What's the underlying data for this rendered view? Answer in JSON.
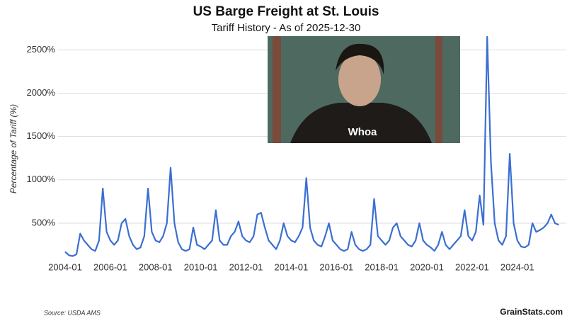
{
  "chart_data": {
    "type": "line",
    "title": "US Barge Freight at St. Louis",
    "subtitle": "Tariff History - As of 2025-12-30",
    "y_label": "Percentage of Tariff (%)",
    "source": "Source: USDA AMS",
    "brand": "GrainStats.com",
    "image_caption": "Whoa",
    "grid": true,
    "xlim": [
      "2004-01",
      "2025-12"
    ],
    "xticks": [
      "2004-01",
      "2006-01",
      "2008-01",
      "2010-01",
      "2012-01",
      "2014-01",
      "2016-01",
      "2018-01",
      "2020-01",
      "2022-01",
      "2024-01"
    ],
    "ylim": [
      50,
      2650
    ],
    "yticks": [
      {
        "value": 500,
        "label": "500%"
      },
      {
        "value": 1000,
        "label": "1000%"
      },
      {
        "value": 1500,
        "label": "1500%"
      },
      {
        "value": 2000,
        "label": "2000%"
      },
      {
        "value": 2500,
        "label": "2500%"
      }
    ],
    "x": [
      "2004-01",
      "2004-03",
      "2004-05",
      "2004-07",
      "2004-09",
      "2004-11",
      "2005-01",
      "2005-03",
      "2005-05",
      "2005-07",
      "2005-09",
      "2005-11",
      "2006-01",
      "2006-03",
      "2006-05",
      "2006-07",
      "2006-09",
      "2006-11",
      "2007-01",
      "2007-03",
      "2007-05",
      "2007-07",
      "2007-09",
      "2007-11",
      "2008-01",
      "2008-03",
      "2008-05",
      "2008-07",
      "2008-09",
      "2008-11",
      "2009-01",
      "2009-03",
      "2009-05",
      "2009-07",
      "2009-09",
      "2009-11",
      "2010-01",
      "2010-03",
      "2010-05",
      "2010-07",
      "2010-09",
      "2010-11",
      "2011-01",
      "2011-03",
      "2011-05",
      "2011-07",
      "2011-09",
      "2011-11",
      "2012-01",
      "2012-03",
      "2012-05",
      "2012-07",
      "2012-09",
      "2012-11",
      "2013-01",
      "2013-03",
      "2013-05",
      "2013-07",
      "2013-09",
      "2013-11",
      "2014-01",
      "2014-03",
      "2014-05",
      "2014-07",
      "2014-09",
      "2014-11",
      "2015-01",
      "2015-03",
      "2015-05",
      "2015-07",
      "2015-09",
      "2015-11",
      "2016-01",
      "2016-03",
      "2016-05",
      "2016-07",
      "2016-09",
      "2016-11",
      "2017-01",
      "2017-03",
      "2017-05",
      "2017-07",
      "2017-09",
      "2017-11",
      "2018-01",
      "2018-03",
      "2018-05",
      "2018-07",
      "2018-09",
      "2018-11",
      "2019-01",
      "2019-03",
      "2019-05",
      "2019-07",
      "2019-09",
      "2019-11",
      "2020-01",
      "2020-03",
      "2020-05",
      "2020-07",
      "2020-09",
      "2020-11",
      "2021-01",
      "2021-03",
      "2021-05",
      "2021-07",
      "2021-09",
      "2021-11",
      "2022-01",
      "2022-03",
      "2022-05",
      "2022-07",
      "2022-09",
      "2022-11",
      "2023-01",
      "2023-03",
      "2023-05",
      "2023-07",
      "2023-09",
      "2023-11",
      "2024-01",
      "2024-03",
      "2024-05",
      "2024-07",
      "2024-09",
      "2024-11",
      "2025-01",
      "2025-03",
      "2025-05",
      "2025-07",
      "2025-09",
      "2025-11"
    ],
    "series": [
      {
        "name": "Tariff",
        "color": "#3b6fd1",
        "values": [
          170,
          130,
          120,
          140,
          380,
          300,
          250,
          200,
          180,
          300,
          900,
          400,
          300,
          250,
          300,
          500,
          550,
          350,
          250,
          200,
          220,
          350,
          900,
          400,
          300,
          280,
          350,
          500,
          1140,
          500,
          280,
          200,
          180,
          200,
          450,
          250,
          230,
          200,
          250,
          300,
          650,
          300,
          250,
          250,
          350,
          400,
          520,
          350,
          300,
          280,
          350,
          600,
          620,
          450,
          300,
          250,
          200,
          300,
          500,
          350,
          300,
          280,
          350,
          450,
          1020,
          450,
          300,
          250,
          230,
          350,
          500,
          300,
          250,
          200,
          180,
          200,
          400,
          250,
          200,
          180,
          200,
          250,
          780,
          350,
          300,
          250,
          300,
          450,
          500,
          350,
          300,
          250,
          230,
          300,
          500,
          300,
          250,
          220,
          180,
          250,
          400,
          250,
          200,
          250,
          300,
          350,
          650,
          350,
          300,
          400,
          820,
          480,
          2650,
          1200,
          500,
          300,
          250,
          350,
          1300,
          500,
          300,
          230,
          220,
          250,
          500,
          400,
          420,
          450,
          500,
          600,
          500,
          480
        ]
      }
    ]
  }
}
